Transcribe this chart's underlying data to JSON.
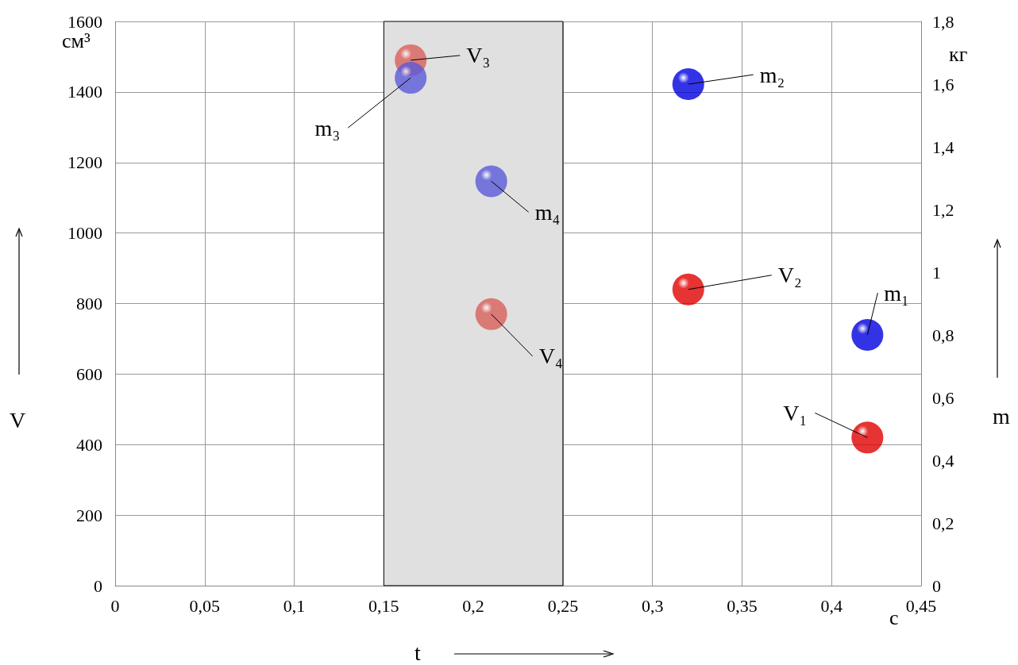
{
  "chart_data": {
    "type": "scatter",
    "xlabel": "t",
    "ylabel": "V",
    "y2label": "m",
    "x": [
      0.42,
      0.32,
      0.165,
      0.21
    ],
    "series": [
      {
        "colors": [
          "#e00000",
          "#e00000",
          "#d9605a",
          "#d9605a"
        ],
        "values": [
          420,
          840,
          1490,
          770
        ]
      },
      {
        "axis": "y2",
        "colors": [
          "#0000e0",
          "#0000e0",
          "#5a5ad9",
          "#5a5ad9"
        ],
        "values": [
          0.8,
          1.6,
          1.62,
          1.29
        ]
      }
    ],
    "xlim": [
      0,
      0.45
    ],
    "xticks": [
      0,
      {
        "value": 0.05,
        "label": "0,05"
      },
      {
        "value": 0.1,
        "label": "0,1"
      },
      {
        "value": 0.15,
        "label": "0,15"
      },
      {
        "value": 0.2,
        "label": "0,2"
      },
      {
        "value": 0.25,
        "label": "0,25"
      },
      {
        "value": 0.3,
        "label": "0,3"
      },
      {
        "value": 0.35,
        "label": "0,35"
      },
      {
        "value": 0.4,
        "label": "0,4"
      },
      {
        "value": 0.45,
        "label": "0,45"
      }
    ],
    "ylim": [
      0,
      1600
    ],
    "yticks": [
      0,
      200,
      400,
      600,
      800,
      1000,
      1200,
      1400,
      1600
    ],
    "y2lim": [
      0,
      1.8
    ],
    "y2ticks": [
      0,
      {
        "value": 0.2,
        "label": "0,2"
      },
      {
        "value": 0.4,
        "label": "0,4"
      },
      {
        "value": 0.6,
        "label": "0,6"
      },
      {
        "value": 0.8,
        "label": "0,8"
      },
      1,
      {
        "value": 1.2,
        "label": "1,2"
      },
      {
        "value": 1.4,
        "label": "1,4"
      },
      {
        "value": 1.6,
        "label": "1,6"
      },
      {
        "value": 1.8,
        "label": "1,8"
      }
    ],
    "bands": [
      {
        "axis": "x",
        "from": 0.15,
        "to": 0.25,
        "color": "#e0e0e0"
      }
    ],
    "annotations": [
      "см³",
      "кг",
      "с",
      {
        "text": "V₁",
        "x": 0.42,
        "y": 420
      },
      {
        "text": "V₂",
        "x": 0.32,
        "y": 840
      },
      {
        "text": "V₃",
        "x": 0.165,
        "y": 1490
      },
      {
        "text": "V₄",
        "x": 0.21,
        "y": 770
      },
      {
        "text": "m₁",
        "x": 0.42,
        "y": 711
      },
      {
        "text": "m₂",
        "x": 0.32,
        "y": 1422
      },
      {
        "text": "m₃",
        "x": 0.165,
        "y": 1440
      },
      {
        "text": "m₄",
        "x": 0.21,
        "y": 1147
      }
    ],
    "grid": true,
    "marker": "circle"
  }
}
